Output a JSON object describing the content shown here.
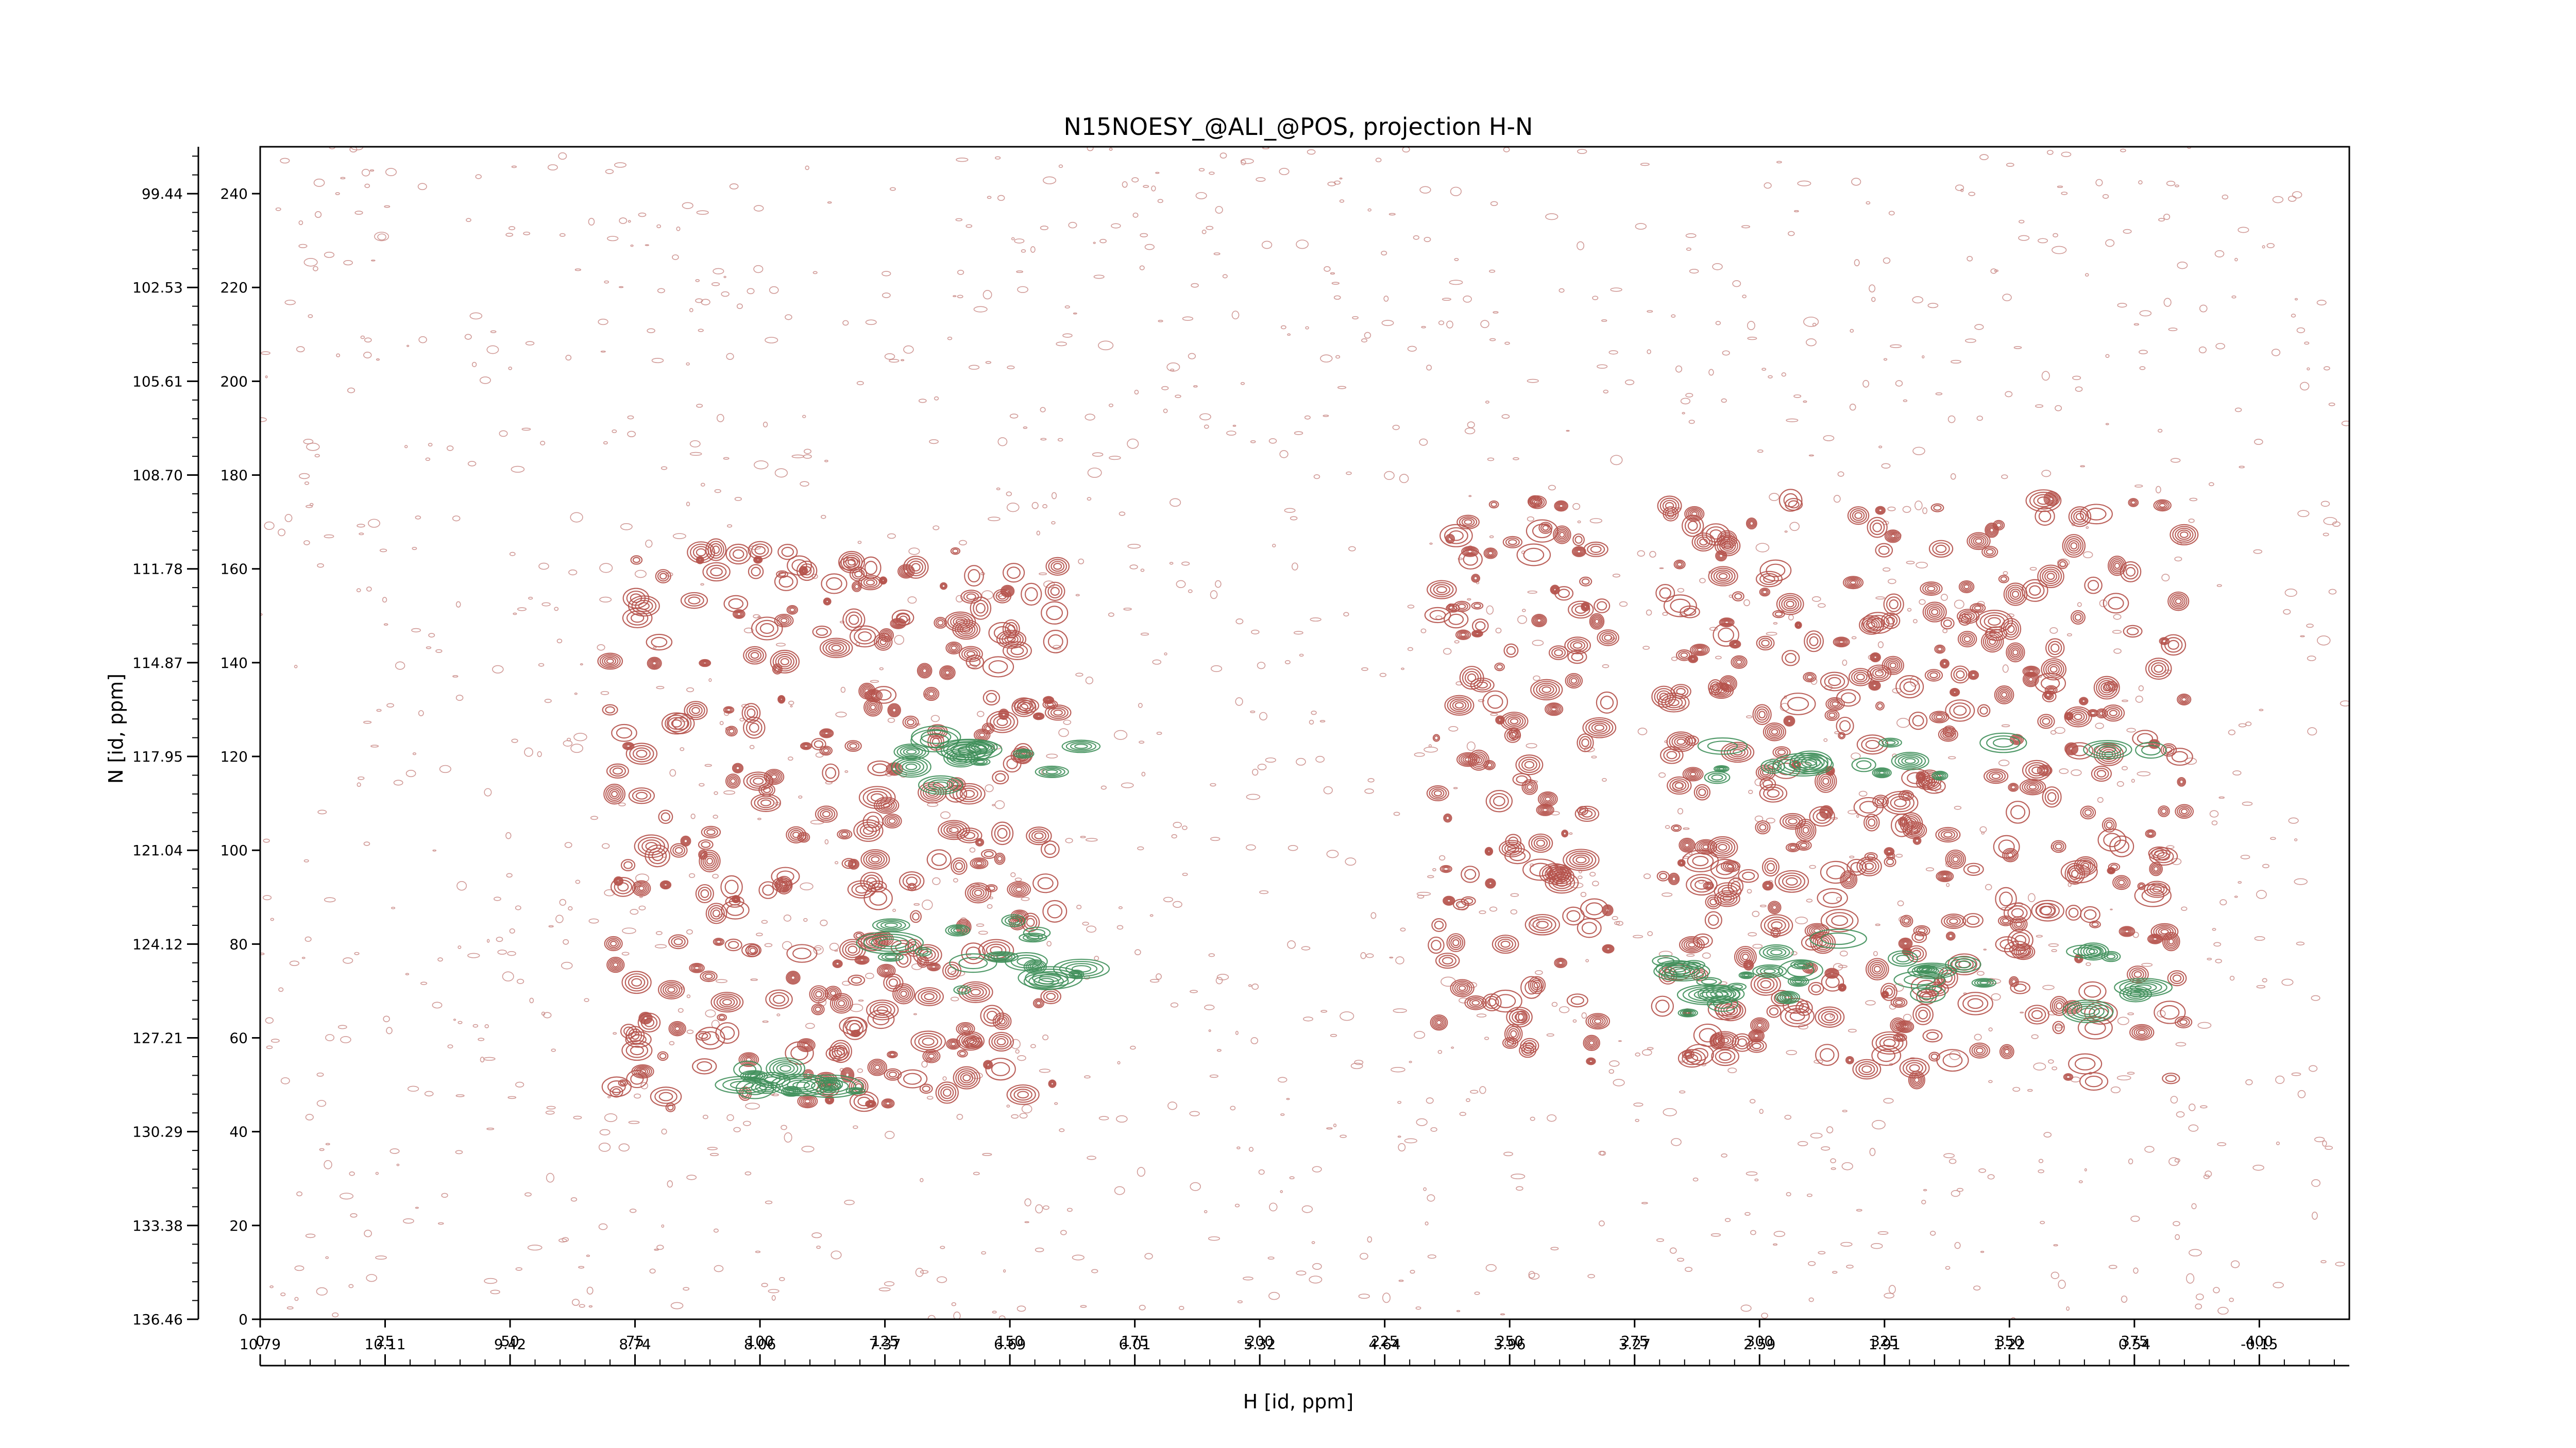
{
  "chart_data": {
    "type": "contour",
    "title": "N15NOESY_@ALI_@POS, projection H-N",
    "xlabel": "H [id, ppm]",
    "ylabel": "N [id, ppm]",
    "x_index_ticks": [
      0,
      25,
      50,
      75,
      100,
      125,
      150,
      175,
      200,
      225,
      250,
      275,
      300,
      325,
      350,
      375,
      400
    ],
    "x_ppm_ticks": [
      "10.79",
      "10.11",
      "9.42",
      "8.74",
      "8.06",
      "7.37",
      "6.69",
      "6.01",
      "5.32",
      "4.64",
      "3.96",
      "3.27",
      "2.59",
      "1.91",
      "1.22",
      "0.54",
      "-0.15"
    ],
    "y_index_ticks": [
      0,
      20,
      40,
      60,
      80,
      100,
      120,
      140,
      160,
      180,
      200,
      220,
      240
    ],
    "y_ppm_ticks": [
      "136.46",
      "133.38",
      "130.29",
      "127.21",
      "124.12",
      "121.04",
      "117.95",
      "114.87",
      "111.78",
      "108.70",
      "105.61",
      "102.53",
      "99.44"
    ],
    "xlim": [
      0,
      418
    ],
    "ylim": [
      0,
      250
    ],
    "colors": {
      "positive": "#b5524b",
      "negative": "#3f8f5a",
      "noise": "#c98a86"
    },
    "peak_clusters": [
      {
        "sign": "positive",
        "x_range": [
          70,
          160
        ],
        "y_range": [
          45,
          165
        ],
        "density": "high"
      },
      {
        "sign": "positive",
        "x_range": [
          235,
          270
        ],
        "y_range": [
          55,
          175
        ],
        "density": "high"
      },
      {
        "sign": "positive",
        "x_range": [
          280,
          385
        ],
        "y_range": [
          50,
          175
        ],
        "density": "high"
      },
      {
        "sign": "negative",
        "x_range": [
          130,
          165
        ],
        "y_range": [
          112,
          125
        ],
        "density": "high"
      },
      {
        "sign": "negative",
        "x_range": [
          125,
          165
        ],
        "y_range": [
          70,
          85
        ],
        "density": "high"
      },
      {
        "sign": "negative",
        "x_range": [
          95,
          120
        ],
        "y_range": [
          48,
          54
        ],
        "density": "medium"
      },
      {
        "sign": "negative",
        "x_range": [
          280,
          380
        ],
        "y_range": [
          115,
          123
        ],
        "density": "medium"
      },
      {
        "sign": "negative",
        "x_range": [
          280,
          380
        ],
        "y_range": [
          65,
          82
        ],
        "density": "medium"
      }
    ]
  }
}
